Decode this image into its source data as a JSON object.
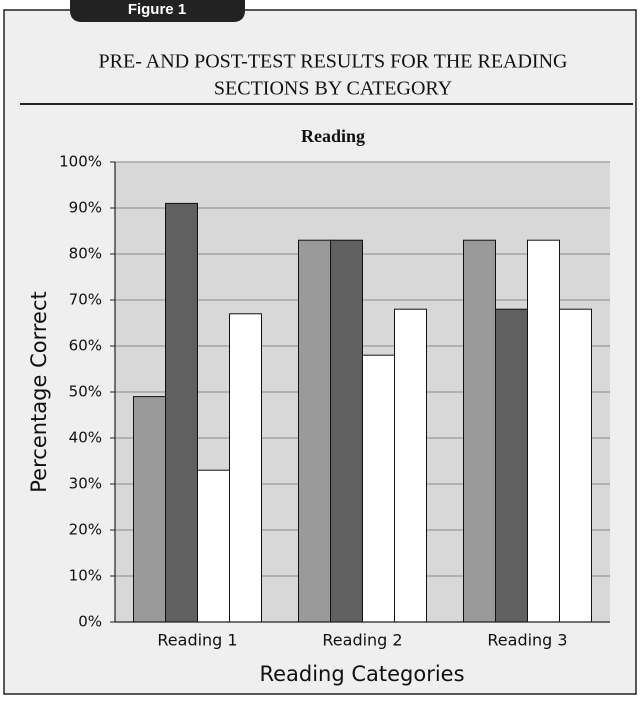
{
  "figure_label": "Figure 1",
  "header": {
    "title_line1": "PRE- AND POST-TEST RESULTS FOR THE READING",
    "title_line2": "SECTIONS BY CATEGORY"
  },
  "chart_data": {
    "type": "bar",
    "title": "Reading",
    "categories": [
      "Reading 1",
      "Reading 2",
      "Reading 3"
    ],
    "series": [
      {
        "color": "#9a9a9a",
        "values": [
          49,
          83,
          83
        ]
      },
      {
        "color": "#606060",
        "values": [
          91,
          83,
          68
        ]
      },
      {
        "color": "#ffffff",
        "values": [
          33,
          58,
          83
        ]
      },
      {
        "color": "#ffffff",
        "values": [
          67,
          68,
          68
        ]
      }
    ],
    "x_label": "Reading Categories",
    "y_label": "Percentage Correct",
    "ylim": [
      0,
      100
    ],
    "yticks": [
      {
        "value": 0,
        "label": "0%"
      },
      {
        "value": 10,
        "label": "10%"
      },
      {
        "value": 20,
        "label": "20%"
      },
      {
        "value": 30,
        "label": "30%"
      },
      {
        "value": 40,
        "label": "40%"
      },
      {
        "value": 50,
        "label": "50%"
      },
      {
        "value": 60,
        "label": "60%"
      },
      {
        "value": 70,
        "label": "70%"
      },
      {
        "value": 80,
        "label": "80%"
      },
      {
        "value": 90,
        "label": "90%"
      },
      {
        "value": 100,
        "label": "100%"
      }
    ],
    "grid": true
  }
}
